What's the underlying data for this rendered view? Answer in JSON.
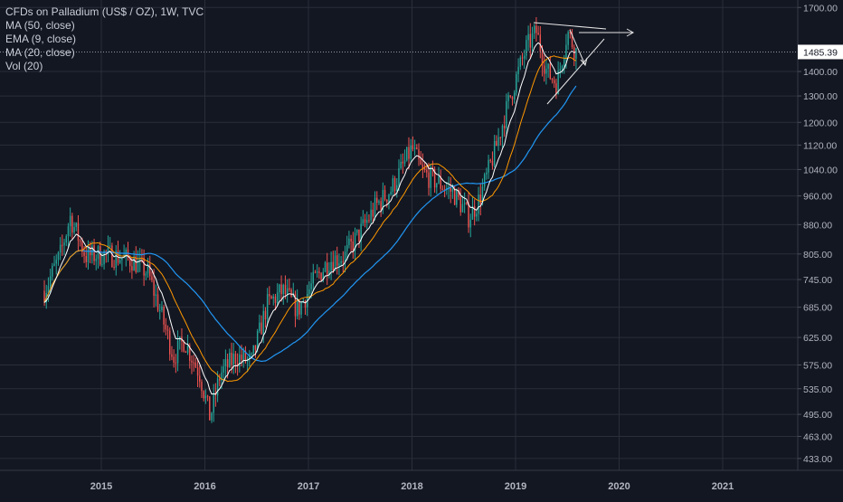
{
  "legend": {
    "title": "CFDs on Palladium (US$ / OZ), 1W, TVC",
    "indicators": [
      "MA (50, close)",
      "EMA (9, close)",
      "MA (20, close)",
      "Vol (20)"
    ]
  },
  "colors": {
    "background": "#131722",
    "grid": "#2a2e39",
    "up": "#26a69a",
    "down": "#ef5350",
    "ma50": "#2196f3",
    "ema9": "#ffffff",
    "ma20": "#ff9800",
    "axis_text": "#b2b5be",
    "current_price_bg": "#ffffff",
    "current_price_text": "#131722"
  },
  "chart_data": {
    "type": "candlestick",
    "y_axis_ticks": [
      "1700.00",
      "1400.00",
      "1300.00",
      "1200.00",
      "1120.00",
      "1040.00",
      "960.00",
      "880.00",
      "805.00",
      "745.00",
      "685.00",
      "625.00",
      "575.00",
      "535.00",
      "495.00",
      "463.00",
      "433.00"
    ],
    "x_axis_ticks": [
      "2015",
      "2016",
      "2017",
      "2018",
      "2019",
      "2020",
      "2021"
    ],
    "current_price": "1485.39",
    "scale": "log",
    "ylim": [
      420,
      1720
    ],
    "series_shape": [
      [
        2014.45,
        720
      ],
      [
        2014.6,
        800
      ],
      [
        2014.7,
        900
      ],
      [
        2014.85,
        800
      ],
      [
        2015.05,
        805
      ],
      [
        2015.3,
        790
      ],
      [
        2015.45,
        760
      ],
      [
        2015.55,
        690
      ],
      [
        2015.7,
        590
      ],
      [
        2015.8,
        620
      ],
      [
        2015.95,
        560
      ],
      [
        2016.05,
        490
      ],
      [
        2016.15,
        560
      ],
      [
        2016.3,
        590
      ],
      [
        2016.45,
        580
      ],
      [
        2016.6,
        690
      ],
      [
        2016.75,
        720
      ],
      [
        2016.9,
        680
      ],
      [
        2017.05,
        740
      ],
      [
        2017.2,
        790
      ],
      [
        2017.35,
        800
      ],
      [
        2017.5,
        860
      ],
      [
        2017.65,
        930
      ],
      [
        2017.8,
        980
      ],
      [
        2018.0,
        1110
      ],
      [
        2018.1,
        1030
      ],
      [
        2018.25,
        1000
      ],
      [
        2018.4,
        970
      ],
      [
        2018.55,
        900
      ],
      [
        2018.65,
        950
      ],
      [
        2018.8,
        1100
      ],
      [
        2018.95,
        1300
      ],
      [
        2019.1,
        1500
      ],
      [
        2019.2,
        1580
      ],
      [
        2019.3,
        1400
      ],
      [
        2019.4,
        1350
      ],
      [
        2019.5,
        1580
      ],
      [
        2019.6,
        1470
      ]
    ]
  }
}
